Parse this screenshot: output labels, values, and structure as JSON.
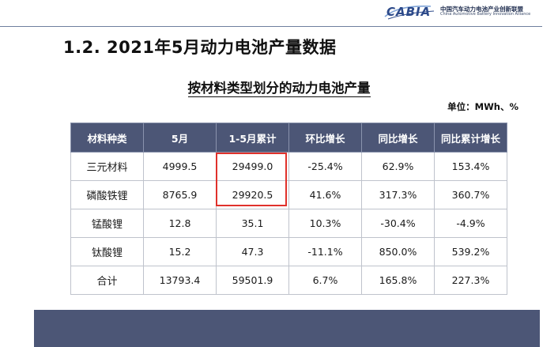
{
  "header": {
    "logo_word": "CABIA",
    "org_name_cn": "中国汽车动力电池产业创新联盟",
    "org_name_en": "China Automotive Battery Innovation Alliance"
  },
  "slide_title": "1.2.  2021年5月动力电池产量数据",
  "table_title": "按材料类型划分的动力电池产量",
  "unit": "单位：MWh、%",
  "table": {
    "headers": [
      "材料种类",
      "5月",
      "1-5月累计",
      "环比增长",
      "同比增长",
      "同比累计增长"
    ],
    "rows": [
      [
        "三元材料",
        "4999.5",
        "29499.0",
        "-25.4%",
        "62.9%",
        "153.4%"
      ],
      [
        "磷酸铁锂",
        "8765.9",
        "29920.5",
        "41.6%",
        "317.3%",
        "360.7%"
      ],
      [
        "锰酸锂",
        "12.8",
        "35.1",
        "10.3%",
        "-30.4%",
        "-4.9%"
      ],
      [
        "钛酸锂",
        "15.2",
        "47.3",
        "-11.1%",
        "850.0%",
        "539.2%"
      ],
      [
        "合计",
        "13793.4",
        "59501.9",
        "6.7%",
        "165.8%",
        "227.3%"
      ]
    ]
  },
  "colors": {
    "header_bg": "#4c5676",
    "highlight": "#e0312b",
    "brand": "#2d4a8a"
  }
}
